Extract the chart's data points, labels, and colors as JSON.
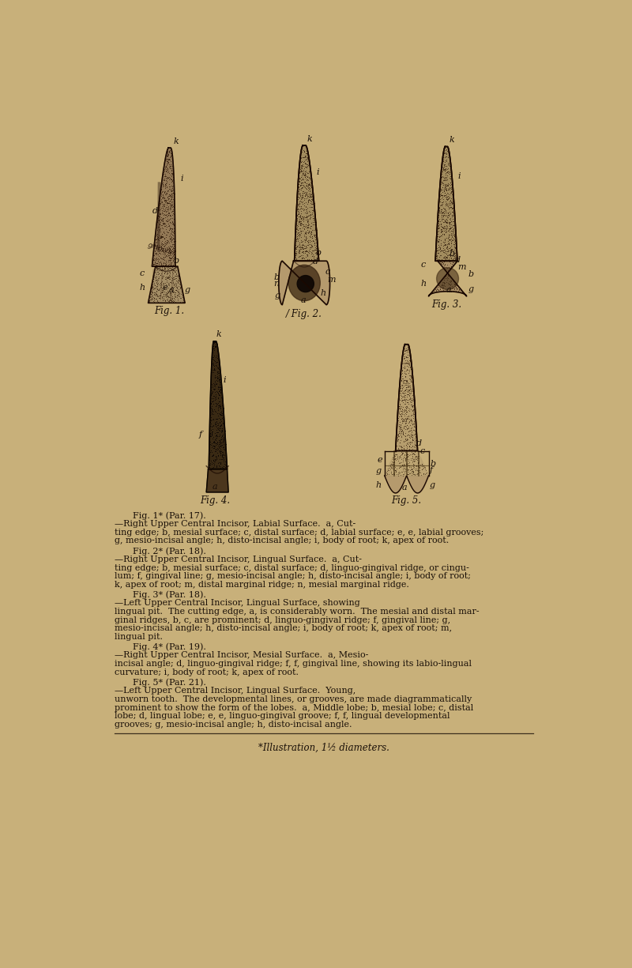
{
  "bg_color": "#c8b07a",
  "text_color": "#1a1008",
  "fig_label_fontsize": 8.5,
  "caption_fontsize": 8.0,
  "footnote_fontsize": 8.5,
  "captions": [
    [
      "Fig. 1* (Par. 17).",
      "—Right Upper Central Incisor, Labial Surface.  a, Cut-",
      "ting edge; b, mesial surface; c, distal surface; d, labial surface; e, e, labial grooves;",
      "g, mesio-incisal angle; h, disto-incisal angle; i, body of root; k, apex of root."
    ],
    [
      "Fig. 2* (Par. 18).",
      "—Right Upper Central Incisor, Lingual Surface.  a, Cut-",
      "ting edge; b, mesial surface; c, distal surface; d, linguo-gingival ridge, or cingu-",
      "lum; f, gingival line; g, mesio-incisal angle; h, disto-incisal angle; i, body of root;",
      "k, apex of root; m, distal marginal ridge; n, mesial marginal ridge."
    ],
    [
      "Fig. 3* (Par. 18).",
      "—Left Upper Central Incisor, Lingual Surface, showing",
      "lingual pit.  The cutting edge, a, is considerably worn.  The mesial and distal mar-",
      "ginal ridges, b, c, are prominent; d, linguo-gingival ridge; f, gingival line; g,",
      "mesio-incisal angle; h, disto-incisal angle; i, body of root; k, apex of root; m,",
      "lingual pit."
    ],
    [
      "Fig. 4* (Par. 19).",
      "—Right Upper Central Incisor, Mesial Surface.  a, Mesio-",
      "incisal angle; d, linguo-gingival ridge; f, f, gingival line, showing its labio-lingual",
      "curvature; i, body of root; k, apex of root."
    ],
    [
      "Fig. 5* (Par. 21).",
      "—Left Upper Central Incisor, Lingual Surface.  Young,",
      "unworn tooth.  The developmental lines, or grooves, are made diagrammatically",
      "prominent to show the form of the lobes.  a, Middle lobe; b, mesial lobe; c, distal",
      "lobe; d, lingual lobe; e, e, linguo-gingival groove; f, f, lingual developmental",
      "grooves; g, mesio-incisal angle; h, disto-incisal angle."
    ]
  ],
  "footnote": "*Illustration, 1½ diameters."
}
